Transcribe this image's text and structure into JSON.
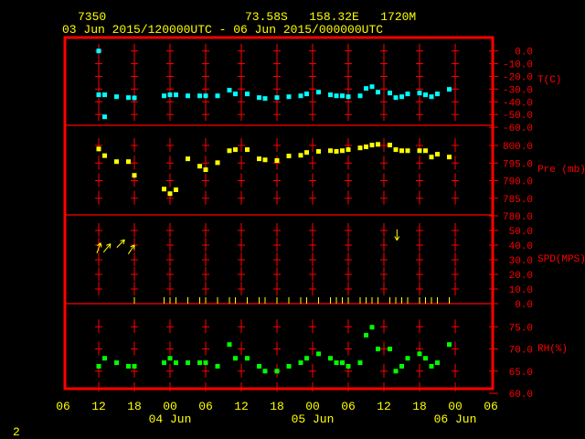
{
  "header": {
    "station_id": "7350",
    "location": "73.58S   158.32E   1720M",
    "period": "03 Jun 2015/120000UTC - 06 Jun 2015/000000UTC"
  },
  "page_number": "2",
  "colors": {
    "frame": "#ff0000",
    "text": "#ffff00",
    "temperature": "#00ffff",
    "pressure": "#ffff00",
    "wind": "#ffff00",
    "humidity": "#00ff00"
  },
  "chart_data": {
    "type": "scatter",
    "x_unit": "hours since 03 Jun 2015 12UTC",
    "x_range": [
      -6,
      66
    ],
    "x_tick_labels": [
      "06",
      "12",
      "18",
      "00",
      "06",
      "12",
      "18",
      "00",
      "06",
      "12",
      "18",
      "00",
      "06"
    ],
    "date_labels": [
      {
        "h": 12,
        "label": "04 Jun"
      },
      {
        "h": 36,
        "label": "05 Jun"
      },
      {
        "h": 60,
        "label": "06 Jun"
      }
    ],
    "panels": [
      {
        "name": "temperature",
        "ylabel": "T(C)",
        "ylim": [
          -60,
          0
        ],
        "tick_labels": [
          "0.0",
          "-10.0",
          "-20.0",
          "-30.0",
          "-40.0",
          "-50.0",
          "-60.0"
        ],
        "x": [
          0,
          0,
          1,
          1,
          3,
          5,
          6,
          11,
          12,
          13,
          15,
          17,
          18,
          20,
          22,
          23,
          25,
          27,
          28,
          30,
          32,
          34,
          35,
          37,
          39,
          40,
          41,
          42,
          44,
          45,
          46,
          47,
          49,
          50,
          51,
          52,
          54,
          55,
          56,
          57,
          59
        ],
        "values": [
          0.0,
          -34.5,
          -34.5,
          -51.8,
          -36.0,
          -36.7,
          -36.9,
          -35.3,
          -34.5,
          -34.5,
          -35.3,
          -35.3,
          -35.3,
          -35.3,
          -30.9,
          -33.8,
          -33.8,
          -36.7,
          -37.4,
          -36.7,
          -36.0,
          -35.3,
          -33.8,
          -32.4,
          -34.5,
          -35.3,
          -35.3,
          -36.0,
          -35.3,
          -29.5,
          -28.1,
          -32.4,
          -33.1,
          -36.7,
          -36.0,
          -33.8,
          -33.1,
          -34.5,
          -36.0,
          -33.8,
          -30.2
        ]
      },
      {
        "name": "pressure",
        "ylabel": "Pre (mb)",
        "ylim": [
          780,
          800
        ],
        "tick_labels": [
          "800.0",
          "795.0",
          "790.0",
          "785.0",
          "780.0"
        ],
        "x": [
          0,
          1,
          3,
          5,
          6,
          11,
          12,
          13,
          15,
          17,
          18,
          20,
          22,
          23,
          25,
          27,
          28,
          30,
          32,
          34,
          35,
          37,
          39,
          40,
          41,
          42,
          44,
          45,
          46,
          47,
          49,
          50,
          51,
          52,
          54,
          55,
          56,
          57,
          59
        ],
        "values": [
          799.0,
          797.1,
          795.4,
          795.4,
          791.5,
          787.6,
          786.3,
          787.4,
          796.2,
          794.1,
          793.1,
          795.1,
          798.5,
          798.8,
          798.8,
          796.2,
          795.9,
          795.7,
          797.0,
          797.2,
          798.0,
          798.3,
          798.5,
          798.3,
          798.5,
          798.8,
          799.3,
          799.6,
          800.1,
          800.3,
          800.1,
          798.8,
          798.5,
          798.5,
          798.5,
          798.5,
          796.7,
          797.5,
          796.7
        ]
      },
      {
        "name": "wind_speed",
        "ylabel": "SPD(MPS)",
        "ylim": [
          0,
          50
        ],
        "tick_labels": [
          "50.0",
          "40.0",
          "30.0",
          "20.0",
          "10.0",
          "0.0"
        ],
        "arrows": [
          {
            "h": 0,
            "speed": 38,
            "heading_deg": 20
          },
          {
            "h": 1.4,
            "speed": 38,
            "heading_deg": 40
          },
          {
            "h": 3.7,
            "speed": 41,
            "heading_deg": 45
          },
          {
            "h": 5.5,
            "speed": 37,
            "heading_deg": 35
          },
          {
            "h": 50.2,
            "speed": 47,
            "heading_deg": 180
          }
        ],
        "calm_x": [
          6,
          11,
          12,
          13,
          15,
          17,
          18,
          20,
          22,
          23,
          25,
          27,
          28,
          30,
          32,
          34,
          35,
          37,
          39,
          40,
          41,
          42,
          44,
          45,
          46,
          47,
          49,
          50,
          51,
          52,
          54,
          55,
          56,
          57,
          59
        ]
      },
      {
        "name": "relative_humidity",
        "ylabel": "RH(%)",
        "ylim": [
          60,
          75
        ],
        "tick_labels": [
          "75.0",
          "70.0",
          "65.0",
          "60.0"
        ],
        "x": [
          0,
          1,
          3,
          5,
          6,
          11,
          12,
          13,
          15,
          17,
          18,
          20,
          22,
          23,
          25,
          27,
          28,
          30,
          32,
          34,
          35,
          37,
          39,
          40,
          41,
          42,
          44,
          45,
          46,
          47,
          49,
          50,
          51,
          52,
          54,
          55,
          56,
          57,
          59
        ],
        "values": [
          66.1,
          67.9,
          66.9,
          66.1,
          66.1,
          66.9,
          67.9,
          66.9,
          66.9,
          66.9,
          66.9,
          66.1,
          71.0,
          67.9,
          67.9,
          66.1,
          65.0,
          65.0,
          66.1,
          66.9,
          67.9,
          68.9,
          67.9,
          66.9,
          66.9,
          66.1,
          66.9,
          73.1,
          74.9,
          70.0,
          70.0,
          65.0,
          66.1,
          67.9,
          68.9,
          67.9,
          66.1,
          66.9,
          71.0
        ]
      }
    ]
  }
}
